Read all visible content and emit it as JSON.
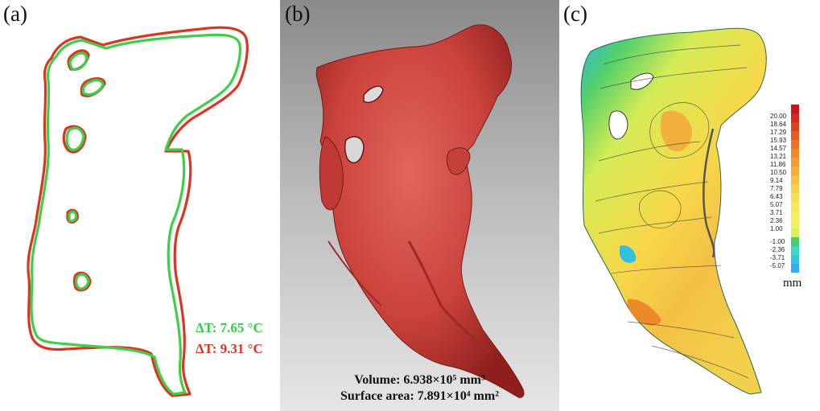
{
  "panels": {
    "a": {
      "label": "(a)",
      "legend": [
        {
          "text": "ΔT: 7.65 °C",
          "color": "#33cc44"
        },
        {
          "text": "ΔT: 9.31 °C",
          "color": "#dd3322"
        }
      ]
    },
    "b": {
      "label": "(b)",
      "volume_text": "Volume: 6.938×10⁵ mm³",
      "surface_text": "Surface area: 7.891×10⁴ mm²"
    },
    "c": {
      "label": "(c)",
      "colorbar": {
        "values": [
          "20.00",
          "18.64",
          "17.29",
          "15.93",
          "14.57",
          "13.21",
          "11.86",
          "10.50",
          "9.14",
          "7.79",
          "6.43",
          "5.07",
          "3.71",
          "2.36",
          "1.00",
          "-1.00",
          "-2.36",
          "-3.71",
          "-5.07"
        ],
        "colors": [
          "#c8141a",
          "#d6281c",
          "#e0401e",
          "#e85a20",
          "#ee7020",
          "#f08828",
          "#f29c30",
          "#f4ae38",
          "#f6c040",
          "#f8d048",
          "#fadc50",
          "#fae658",
          "#f6ee5a",
          "#eef25c",
          "#d8f05a",
          "#44d066",
          "#3ad8c8",
          "#34c4e4",
          "#2cb0ec"
        ],
        "unit": "mm"
      }
    }
  }
}
